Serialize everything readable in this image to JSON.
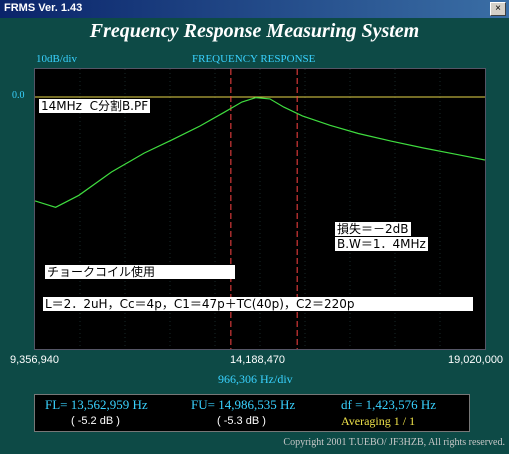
{
  "window": {
    "title": "FRMS   Ver. 1.43",
    "close_label": "×"
  },
  "app_title": "Frequency Response Measuring System",
  "plot_header": {
    "scale": "10dB/div",
    "title": "FREQUENCY RESPONSE",
    "ref_level": "0.0"
  },
  "annotations": {
    "filter_name": "14MHz  C分割B.PF",
    "loss": "損失＝－2dB",
    "bandwidth": "B.W＝1．4MHz",
    "choke": "チョークコイル使用",
    "components": "L＝2．2uH，Cc＝4p，C1＝47p＋TC(40p)，C2＝220p"
  },
  "axis": {
    "start": "9,356,940",
    "center": "14,188,470",
    "end": "19,020,000",
    "per_div": "966,306  Hz/div"
  },
  "measurements": {
    "fl_label": "FL= 13,562,959  Hz",
    "fu_label": "FU= 14,986,535  Hz",
    "df_label": "df = 1,423,576  Hz",
    "fl_db": "( -5.2 dB )",
    "fu_db": "( -5.3 dB )",
    "averaging": "Averaging   1 / 1"
  },
  "copyright": "Copyright 2001 T.UEBO/ JF3HZB, All rights reserved.",
  "colors": {
    "trace": "#3fdc3f",
    "marker": "#ff4444",
    "ref_line": "#e8d84a",
    "grid": "#2f5050"
  },
  "chart_data": {
    "type": "line",
    "x_unit": "Hz",
    "y_unit": "dB",
    "xlim": [
      9356940,
      19020000
    ],
    "ylim": [
      -40,
      0
    ],
    "markers": [
      13562959,
      14986535
    ],
    "x": [
      9356940,
      9800000,
      10300000,
      11000000,
      11700000,
      12300000,
      12900000,
      13400000,
      13800000,
      14100000,
      14400000,
      14700000,
      15100000,
      15700000,
      16300000,
      17000000,
      17700000,
      18400000,
      19020000
    ],
    "y": [
      -16.5,
      -17.5,
      -15.6,
      -11.9,
      -8.9,
      -6.8,
      -4.6,
      -2.5,
      -0.8,
      -0.1,
      -0.3,
      -1.6,
      -3.0,
      -4.5,
      -5.8,
      -7.0,
      -8.1,
      -9.1,
      -10.0
    ]
  }
}
